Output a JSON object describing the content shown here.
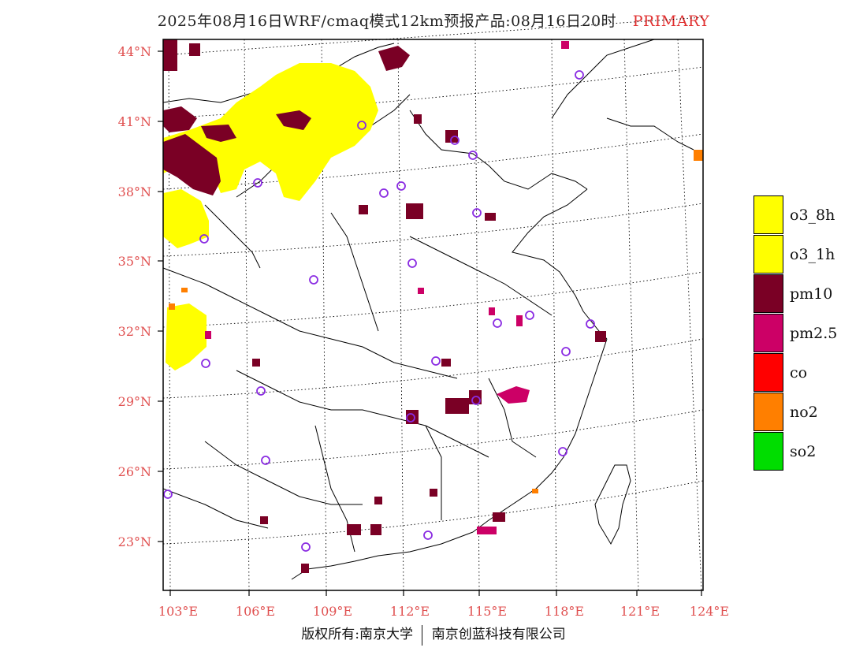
{
  "title": {
    "main": "2025年08月16日WRF/cmaq模式12km预报产品:08月16日20时",
    "tag": "PRIMARY"
  },
  "axes": {
    "lat_labels": [
      "44°N",
      "41°N",
      "38°N",
      "35°N",
      "32°N",
      "29°N",
      "26°N",
      "23°N"
    ],
    "lon_labels": [
      "103°E",
      "106°E",
      "109°E",
      "112°E",
      "115°E",
      "118°E",
      "121°E",
      "124°E"
    ]
  },
  "legend": [
    {
      "label": "o3_8h",
      "color": "#ffff00"
    },
    {
      "label": "o3_1h",
      "color": "#ffff00"
    },
    {
      "label": "pm10",
      "color": "#7a0025"
    },
    {
      "label": "pm2.5",
      "color": "#cc0066"
    },
    {
      "label": "co",
      "color": "#ff0000"
    },
    {
      "label": "no2",
      "color": "#ff7f00"
    },
    {
      "label": "so2",
      "color": "#00dd00"
    }
  ],
  "footer": {
    "left": "版权所有:南京大学",
    "right": "南京创蓝科技有限公司"
  },
  "colors": {
    "axis_label": "#e05050",
    "station_ring": "#8a2be2"
  }
}
